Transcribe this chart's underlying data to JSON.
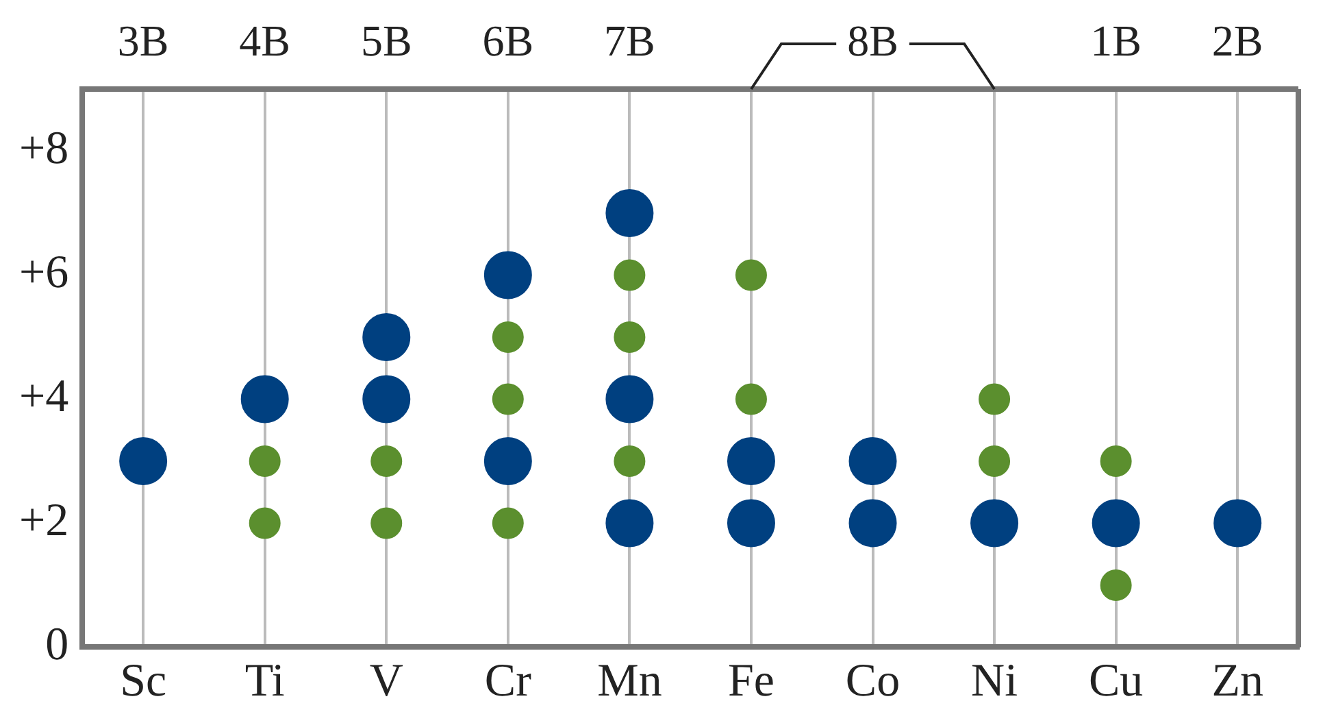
{
  "chart_data": {
    "type": "scatter",
    "categories": [
      "Sc",
      "Ti",
      "V",
      "Cr",
      "Mn",
      "Fe",
      "Co",
      "Ni",
      "Cu",
      "Zn"
    ],
    "series": [
      {
        "color": "#004080",
        "x": [
          "Sc",
          "Ti",
          "V",
          "V",
          "Cr",
          "Cr",
          "Mn",
          "Mn",
          "Mn",
          "Fe",
          "Fe",
          "Co",
          "Co",
          "Ni",
          "Cu",
          "Zn"
        ],
        "values": [
          3,
          4,
          4,
          5,
          3,
          6,
          2,
          4,
          7,
          2,
          3,
          2,
          3,
          2,
          2,
          2
        ]
      },
      {
        "color": "#5b8f2e",
        "x": [
          "Ti",
          "Ti",
          "V",
          "V",
          "Cr",
          "Cr",
          "Cr",
          "Mn",
          "Mn",
          "Mn",
          "Fe",
          "Fe",
          "Ni",
          "Ni",
          "Cu",
          "Cu"
        ],
        "values": [
          2,
          3,
          2,
          3,
          2,
          4,
          5,
          3,
          5,
          6,
          4,
          6,
          3,
          4,
          1,
          3
        ]
      }
    ],
    "ylim": [
      0,
      9
    ],
    "yticks": [
      0,
      {
        "value": 2,
        "label": "+2"
      },
      {
        "value": 4,
        "label": "+4"
      },
      {
        "value": 6,
        "label": "+6"
      },
      {
        "value": 8,
        "label": "+8"
      }
    ],
    "grid": "x",
    "marker": "circle",
    "legend": false,
    "annotations": [
      "3B",
      "4B",
      "5B",
      "6B",
      "7B",
      "8B",
      "1B",
      "2B"
    ]
  }
}
